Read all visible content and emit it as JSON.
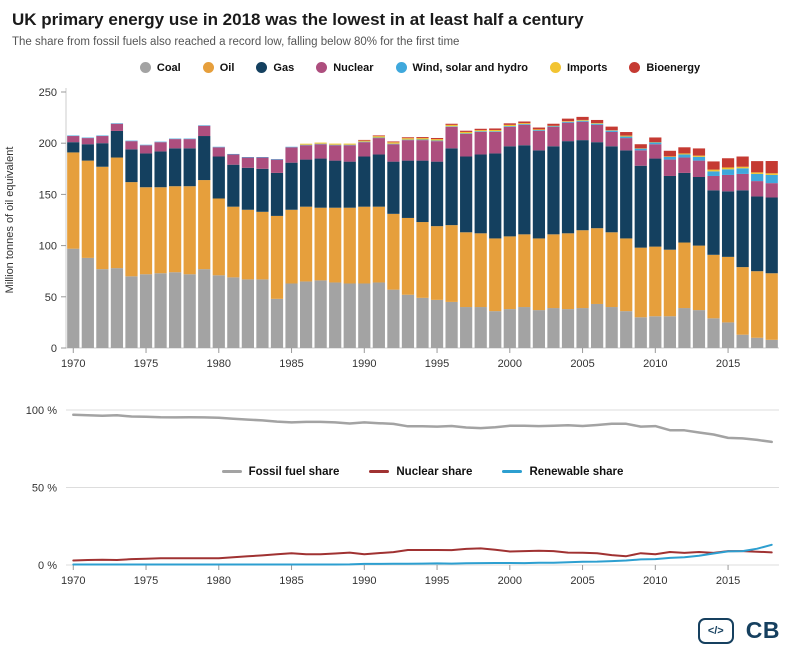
{
  "header": {
    "title": "UK primary energy use in 2018 was the lowest in at least half a century",
    "subtitle": "The share from fossil fuels also reached a record low, falling below 80% for the first time"
  },
  "colors": {
    "title": "#1a1a1a",
    "subtitle": "#555555",
    "logo": "#16405f",
    "axis_text": "#333333",
    "gridline": "#dddddd"
  },
  "footer": {
    "code_icon_label": "</>",
    "logo_text": "CB"
  },
  "chart_data": [
    {
      "type": "bar",
      "stacked": true,
      "title": "",
      "xlabel": "",
      "ylabel": "Million tonnes of oil equivalent",
      "ylim": [
        0,
        250
      ],
      "yticks": [
        0,
        50,
        100,
        150,
        200,
        250
      ],
      "xticks": [
        1970,
        1975,
        1980,
        1985,
        1990,
        1995,
        2000,
        2005,
        2010,
        2015
      ],
      "years": [
        1970,
        1971,
        1972,
        1973,
        1974,
        1975,
        1976,
        1977,
        1978,
        1979,
        1980,
        1981,
        1982,
        1983,
        1984,
        1985,
        1986,
        1987,
        1988,
        1989,
        1990,
        1991,
        1992,
        1993,
        1994,
        1995,
        1996,
        1997,
        1998,
        1999,
        2000,
        2001,
        2002,
        2003,
        2004,
        2005,
        2006,
        2007,
        2008,
        2009,
        2010,
        2011,
        2012,
        2013,
        2014,
        2015,
        2016,
        2017,
        2018
      ],
      "series": [
        {
          "name": "Coal",
          "color": "#a3a3a3",
          "values": [
            97,
            88,
            77,
            78,
            70,
            72,
            73,
            74,
            72,
            77,
            71,
            69,
            67,
            67,
            48,
            63,
            65,
            66,
            64,
            63,
            63,
            64,
            57,
            52,
            49,
            47,
            45,
            40,
            40,
            36,
            38,
            40,
            37,
            39,
            38,
            39,
            43,
            40,
            36,
            30,
            31,
            31,
            39,
            37,
            29,
            25,
            13,
            10,
            8
          ]
        },
        {
          "name": "Oil",
          "color": "#e69f3c",
          "values": [
            94,
            95,
            100,
            108,
            92,
            85,
            84,
            84,
            86,
            87,
            75,
            69,
            68,
            66,
            81,
            72,
            73,
            71,
            73,
            74,
            75,
            74,
            74,
            75,
            74,
            72,
            75,
            73,
            72,
            71,
            71,
            71,
            70,
            72,
            74,
            76,
            74,
            73,
            71,
            68,
            68,
            65,
            64,
            63,
            62,
            64,
            66,
            65,
            65
          ]
        },
        {
          "name": "Gas",
          "color": "#14405f",
          "values": [
            10,
            16,
            23,
            26,
            32,
            33,
            35,
            37,
            37,
            43,
            41,
            41,
            41,
            42,
            42,
            46,
            46,
            48,
            46,
            45,
            49,
            51,
            51,
            56,
            60,
            63,
            75,
            74,
            77,
            83,
            88,
            87,
            86,
            86,
            90,
            88,
            84,
            84,
            86,
            80,
            86,
            72,
            68,
            67,
            63,
            64,
            75,
            73,
            74
          ]
        },
        {
          "name": "Nuclear",
          "color": "#ad4e7e",
          "values": [
            6,
            6,
            7,
            7,
            8,
            8,
            9,
            9,
            9,
            10,
            9,
            10,
            10,
            11,
            13,
            15,
            14,
            14,
            15,
            16,
            14,
            16,
            17,
            20,
            20,
            20,
            21,
            22,
            22,
            21,
            19,
            20,
            19,
            19,
            18,
            18,
            17,
            14,
            12,
            15,
            14,
            16,
            15,
            16,
            14,
            16,
            16,
            15,
            14
          ]
        },
        {
          "name": "Wind, solar and hydro",
          "color": "#3fa8dc",
          "values": [
            0.5,
            0.5,
            0.5,
            0.5,
            0.5,
            0.5,
            0.5,
            0.5,
            0.5,
            0.5,
            0.5,
            0.5,
            0.5,
            0.5,
            0.5,
            0.5,
            0.5,
            0.5,
            0.5,
            0.5,
            0.5,
            0.5,
            0.5,
            0.5,
            0.6,
            0.6,
            0.5,
            0.6,
            0.7,
            0.7,
            0.7,
            0.7,
            0.8,
            0.8,
            0.9,
            1.0,
            1.1,
            1.3,
            1.5,
            1.8,
            1.9,
            2.6,
            3.0,
            3.7,
            4.5,
            5.5,
            5.5,
            7.0,
            8.0
          ]
        },
        {
          "name": "Imports",
          "color": "#f2c432",
          "values": [
            0,
            0,
            0,
            0,
            0,
            0,
            0,
            0,
            0,
            0,
            0,
            0,
            0,
            0,
            0,
            0,
            1.0,
            1.1,
            1.1,
            1.1,
            1.0,
            1.4,
            1.4,
            1.4,
            1.4,
            1.4,
            1.4,
            1.4,
            1.1,
            1.2,
            1.2,
            0.9,
            0.7,
            0.2,
            0.6,
            0.7,
            0.6,
            0.4,
            0.9,
            0.2,
            0.2,
            0.5,
            1.0,
            1.2,
            1.7,
            1.8,
            1.5,
            1.5,
            1.6
          ]
        },
        {
          "name": "Bioenergy",
          "color": "#c53a32",
          "values": [
            0,
            0,
            0,
            0,
            0,
            0,
            0,
            0,
            0,
            0,
            0,
            0,
            0,
            0,
            0,
            0,
            0,
            0,
            0,
            0,
            0.7,
            0.7,
            0.8,
            0.9,
            1.0,
            1.1,
            1.1,
            1.2,
            1.3,
            1.5,
            1.5,
            1.6,
            1.8,
            2.0,
            2.5,
            3.0,
            3.0,
            3.5,
            3.5,
            4.0,
            4.5,
            5.5,
            6.0,
            7.0,
            8.0,
            9.0,
            10.0,
            11.0,
            12.0
          ]
        }
      ]
    },
    {
      "type": "line",
      "title": "",
      "xlabel": "",
      "ylabel": "",
      "ylim": [
        0,
        100
      ],
      "yticks": [
        0,
        50,
        100
      ],
      "ytick_labels": [
        "0 %",
        "50 %",
        "100 %"
      ],
      "xticks": [
        1970,
        1975,
        1980,
        1985,
        1990,
        1995,
        2000,
        2005,
        2010,
        2015
      ],
      "legend_position": "center",
      "grid": true,
      "years": [
        1970,
        1971,
        1972,
        1973,
        1974,
        1975,
        1976,
        1977,
        1978,
        1979,
        1980,
        1981,
        1982,
        1983,
        1984,
        1985,
        1986,
        1987,
        1988,
        1989,
        1990,
        1991,
        1992,
        1993,
        1994,
        1995,
        1996,
        1997,
        1998,
        1999,
        2000,
        2001,
        2002,
        2003,
        2004,
        2005,
        2006,
        2007,
        2008,
        2009,
        2010,
        2011,
        2012,
        2013,
        2014,
        2015,
        2016,
        2017,
        2018
      ],
      "series": [
        {
          "name": "Fossil fuel share",
          "color": "#a3a3a3",
          "values": [
            96.9,
            96.6,
            96.3,
            96.6,
            95.8,
            95.6,
            95.3,
            95.2,
            95.3,
            95.2,
            95.0,
            94.4,
            93.8,
            93.3,
            92.5,
            92.0,
            92.3,
            92.3,
            92.0,
            91.3,
            92.0,
            91.5,
            91.0,
            89.5,
            89.5,
            89.3,
            89.7,
            88.7,
            88.3,
            88.9,
            89.8,
            89.8,
            89.6,
            89.8,
            90.1,
            89.7,
            90.3,
            91.1,
            91.1,
            89.3,
            89.6,
            87.0,
            86.9,
            85.5,
            84.2,
            82.0,
            81.7,
            80.7,
            79.4
          ]
        },
        {
          "name": "Nuclear share",
          "color": "#a03232",
          "values": [
            2.9,
            3.2,
            3.4,
            3.2,
            3.8,
            4.0,
            4.3,
            4.4,
            4.3,
            4.4,
            4.4,
            5.0,
            5.6,
            6.2,
            7.0,
            7.6,
            7.0,
            6.9,
            7.4,
            8.0,
            6.9,
            7.7,
            8.3,
            9.7,
            9.7,
            9.7,
            9.6,
            10.4,
            10.7,
            9.8,
            8.7,
            9.0,
            9.2,
            9.0,
            8.0,
            7.9,
            7.6,
            6.4,
            5.7,
            7.6,
            6.9,
            8.4,
            7.8,
            8.4,
            7.8,
            9.0,
            9.0,
            8.6,
            8.1
          ]
        },
        {
          "name": "Renewable share",
          "color": "#2d9fd0",
          "values": [
            0.3,
            0.3,
            0.3,
            0.3,
            0.3,
            0.3,
            0.3,
            0.3,
            0.3,
            0.3,
            0.3,
            0.3,
            0.3,
            0.3,
            0.3,
            0.3,
            0.3,
            0.3,
            0.3,
            0.4,
            0.7,
            0.7,
            0.8,
            0.8,
            0.9,
            1.0,
            0.9,
            1.1,
            1.2,
            1.3,
            1.3,
            1.2,
            1.4,
            1.5,
            1.8,
            2.1,
            2.2,
            2.5,
            2.9,
            3.6,
            3.8,
            4.6,
            5.0,
            6.0,
            7.4,
            8.8,
            9.0,
            10.5,
            13.0
          ]
        }
      ]
    }
  ]
}
